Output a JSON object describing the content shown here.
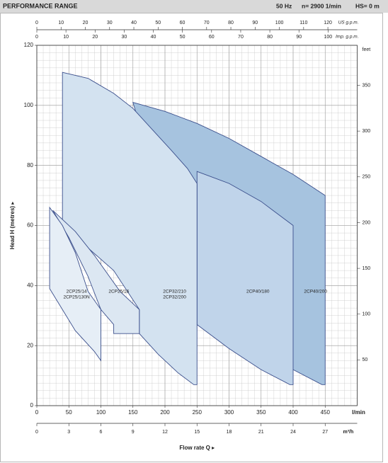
{
  "header": {
    "title": "PERFORMANCE RANGE",
    "frequency": "50 Hz",
    "speed": "n= 2900 1/min",
    "suction": "HS= 0 m"
  },
  "chart_data": {
    "type": "region",
    "xlabel": "Flow rate Q ▸",
    "x_unit": "l/min",
    "ylabel": "Head H (metres) ▸",
    "y2label": "feet",
    "xlim": [
      0,
      500
    ],
    "xticks": [
      0,
      50,
      100,
      150,
      200,
      250,
      300,
      350,
      400,
      450
    ],
    "ylim": [
      0,
      120
    ],
    "yticks": [
      0,
      20,
      40,
      60,
      80,
      100,
      120
    ],
    "y2lim": [
      0,
      393.7
    ],
    "y2ticks": [
      50,
      100,
      150,
      200,
      250,
      300,
      350
    ],
    "grid": true,
    "top_axes": [
      {
        "label": "US g.p.m.",
        "lim": [
          0,
          132.09
        ],
        "ticks": [
          0,
          10,
          20,
          30,
          40,
          50,
          60,
          70,
          80,
          90,
          100,
          110,
          120
        ]
      },
      {
        "label": "Imp. g.p.m.",
        "lim": [
          0,
          110
        ],
        "ticks": [
          0,
          10,
          20,
          30,
          40,
          50,
          60,
          70,
          80,
          90,
          100
        ]
      }
    ],
    "bottom_axis": {
      "label": "m³/h",
      "lim": [
        0,
        30
      ],
      "ticks": [
        0,
        3,
        6,
        9,
        12,
        15,
        18,
        21,
        24,
        27
      ]
    },
    "stroke": "#3b4f8c",
    "series": [
      {
        "name": [
          "2CP40/200"
        ],
        "color": "#a6c3df",
        "x": [
          150,
          200,
          250,
          300,
          350,
          400,
          450,
          450,
          445,
          400,
          350,
          300,
          250
        ],
        "values": [
          101,
          98,
          94,
          89,
          83,
          77,
          70,
          7,
          7,
          12,
          18,
          24,
          30
        ]
      },
      {
        "name": [
          "2CP40/180"
        ],
        "color": "#c0d4ea",
        "x": [
          250,
          300,
          350,
          400,
          400,
          395,
          350,
          300,
          250
        ],
        "values": [
          78,
          74,
          68,
          60,
          7,
          7,
          12,
          19,
          27
        ]
      },
      {
        "name": [
          "2CP32/210",
          "2CP32/200"
        ],
        "color": "#d3e2f0",
        "x": [
          40,
          80,
          120,
          150,
          180,
          210,
          235,
          250,
          250,
          245,
          220,
          190,
          160,
          160,
          120,
          40
        ],
        "values": [
          111,
          109,
          104,
          99,
          92,
          85,
          79,
          74,
          7,
          7,
          11,
          17,
          24,
          32,
          45,
          60
        ]
      },
      {
        "name": [
          "2CP25/16"
        ],
        "color": "#dce7f2",
        "x": [
          25,
          60,
          90,
          110,
          130,
          150,
          160,
          160,
          120,
          120,
          100,
          80,
          50
        ],
        "values": [
          65,
          58,
          50,
          44,
          38,
          34,
          32,
          24,
          24,
          27,
          32,
          43,
          56
        ]
      },
      {
        "name": [
          "2CP25/14",
          "2CP25/130N"
        ],
        "color": "#e6eef6",
        "x": [
          20,
          40,
          60,
          80,
          100,
          100,
          90,
          60,
          20
        ],
        "values": [
          66,
          60,
          51,
          38,
          32,
          15,
          18,
          25,
          39
        ]
      }
    ]
  }
}
